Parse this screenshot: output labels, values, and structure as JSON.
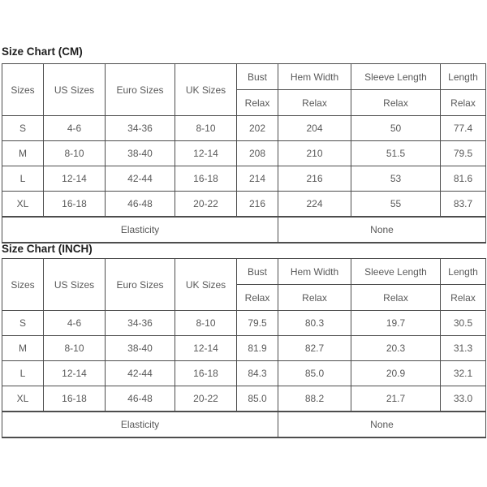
{
  "colors": {
    "background": "#ffffff",
    "border": "#4d4d4d",
    "cell_text": "#595959",
    "title_text": "#1f1f1f"
  },
  "tables": [
    {
      "title": "Size Chart (CM)",
      "header": {
        "sizes": "Sizes",
        "us_sizes": "US Sizes",
        "euro_sizes": "Euro Sizes",
        "uk_sizes": "UK Sizes",
        "bust": "Bust",
        "hem_width": "Hem Width",
        "sleeve_length": "Sleeve Length",
        "length": "Length",
        "relax": "Relax"
      },
      "rows": [
        [
          "S",
          "4-6",
          "34-36",
          "8-10",
          "202",
          "204",
          "50",
          "77.4"
        ],
        [
          "M",
          "8-10",
          "38-40",
          "12-14",
          "208",
          "210",
          "51.5",
          "79.5"
        ],
        [
          "L",
          "12-14",
          "42-44",
          "16-18",
          "214",
          "216",
          "53",
          "81.6"
        ],
        [
          "XL",
          "16-18",
          "46-48",
          "20-22",
          "216",
          "224",
          "55",
          "83.7"
        ]
      ],
      "footer": {
        "elasticity_label": "Elasticity",
        "elasticity_value": "None"
      }
    },
    {
      "title": "Size Chart (INCH)",
      "header": {
        "sizes": "Sizes",
        "us_sizes": "US Sizes",
        "euro_sizes": "Euro Sizes",
        "uk_sizes": "UK Sizes",
        "bust": "Bust",
        "hem_width": "Hem Width",
        "sleeve_length": "Sleeve Length",
        "length": "Length",
        "relax": "Relax"
      },
      "rows": [
        [
          "S",
          "4-6",
          "34-36",
          "8-10",
          "79.5",
          "80.3",
          "19.7",
          "30.5"
        ],
        [
          "M",
          "8-10",
          "38-40",
          "12-14",
          "81.9",
          "82.7",
          "20.3",
          "31.3"
        ],
        [
          "L",
          "12-14",
          "42-44",
          "16-18",
          "84.3",
          "85.0",
          "20.9",
          "32.1"
        ],
        [
          "XL",
          "16-18",
          "46-48",
          "20-22",
          "85.0",
          "88.2",
          "21.7",
          "33.0"
        ]
      ],
      "footer": {
        "elasticity_label": "Elasticity",
        "elasticity_value": "None"
      }
    }
  ]
}
